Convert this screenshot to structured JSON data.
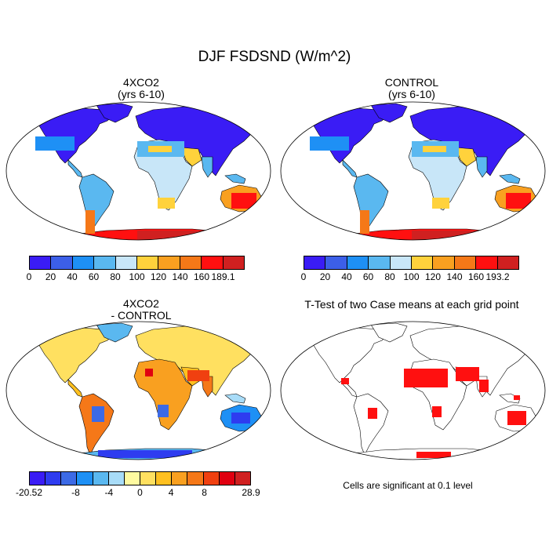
{
  "figure": {
    "title": "DJF FSDSND (W/m^2)"
  },
  "panels": [
    {
      "id": "4xco2",
      "title_line1": "4XCO2",
      "title_line2": "(yrs 6-10)"
    },
    {
      "id": "control",
      "title_line1": "CONTROL",
      "title_line2": "(yrs 6-10)"
    },
    {
      "id": "diff",
      "title_line1": "4XCO2",
      "title_line2": "- CONTROL"
    },
    {
      "id": "ttest",
      "title_line1": "T-Test of two Case means at each grid point",
      "title_line2": ""
    }
  ],
  "colorbars": {
    "abs_colors": [
      "#3a1cf5",
      "#3c5fe8",
      "#1e90f5",
      "#5ab8f0",
      "#c8e6f8",
      "#ffd23c",
      "#f9a020",
      "#f57818",
      "#ff1010",
      "#d02020"
    ],
    "bar1_ticks": [
      "0",
      "20",
      "40",
      "60",
      "80",
      "100",
      "120",
      "140",
      "160",
      "189.1"
    ],
    "bar2_ticks": [
      "0",
      "20",
      "40",
      "60",
      "80",
      "100",
      "120",
      "140",
      "160",
      "193.2"
    ],
    "diff_colors": [
      "#3a1cf5",
      "#2e3cf0",
      "#3c6ae6",
      "#1e90f5",
      "#5ab8f0",
      "#a8dcf8",
      "#fffaa0",
      "#ffe060",
      "#ffc020",
      "#f9a020",
      "#f57818",
      "#f04010",
      "#e00010",
      "#d02020"
    ],
    "bar3_ticks": [
      "-20.52",
      "-8",
      "-4",
      "0",
      "4",
      "8",
      "28.9"
    ]
  },
  "note": "Cells are significant at 0.1 level"
}
